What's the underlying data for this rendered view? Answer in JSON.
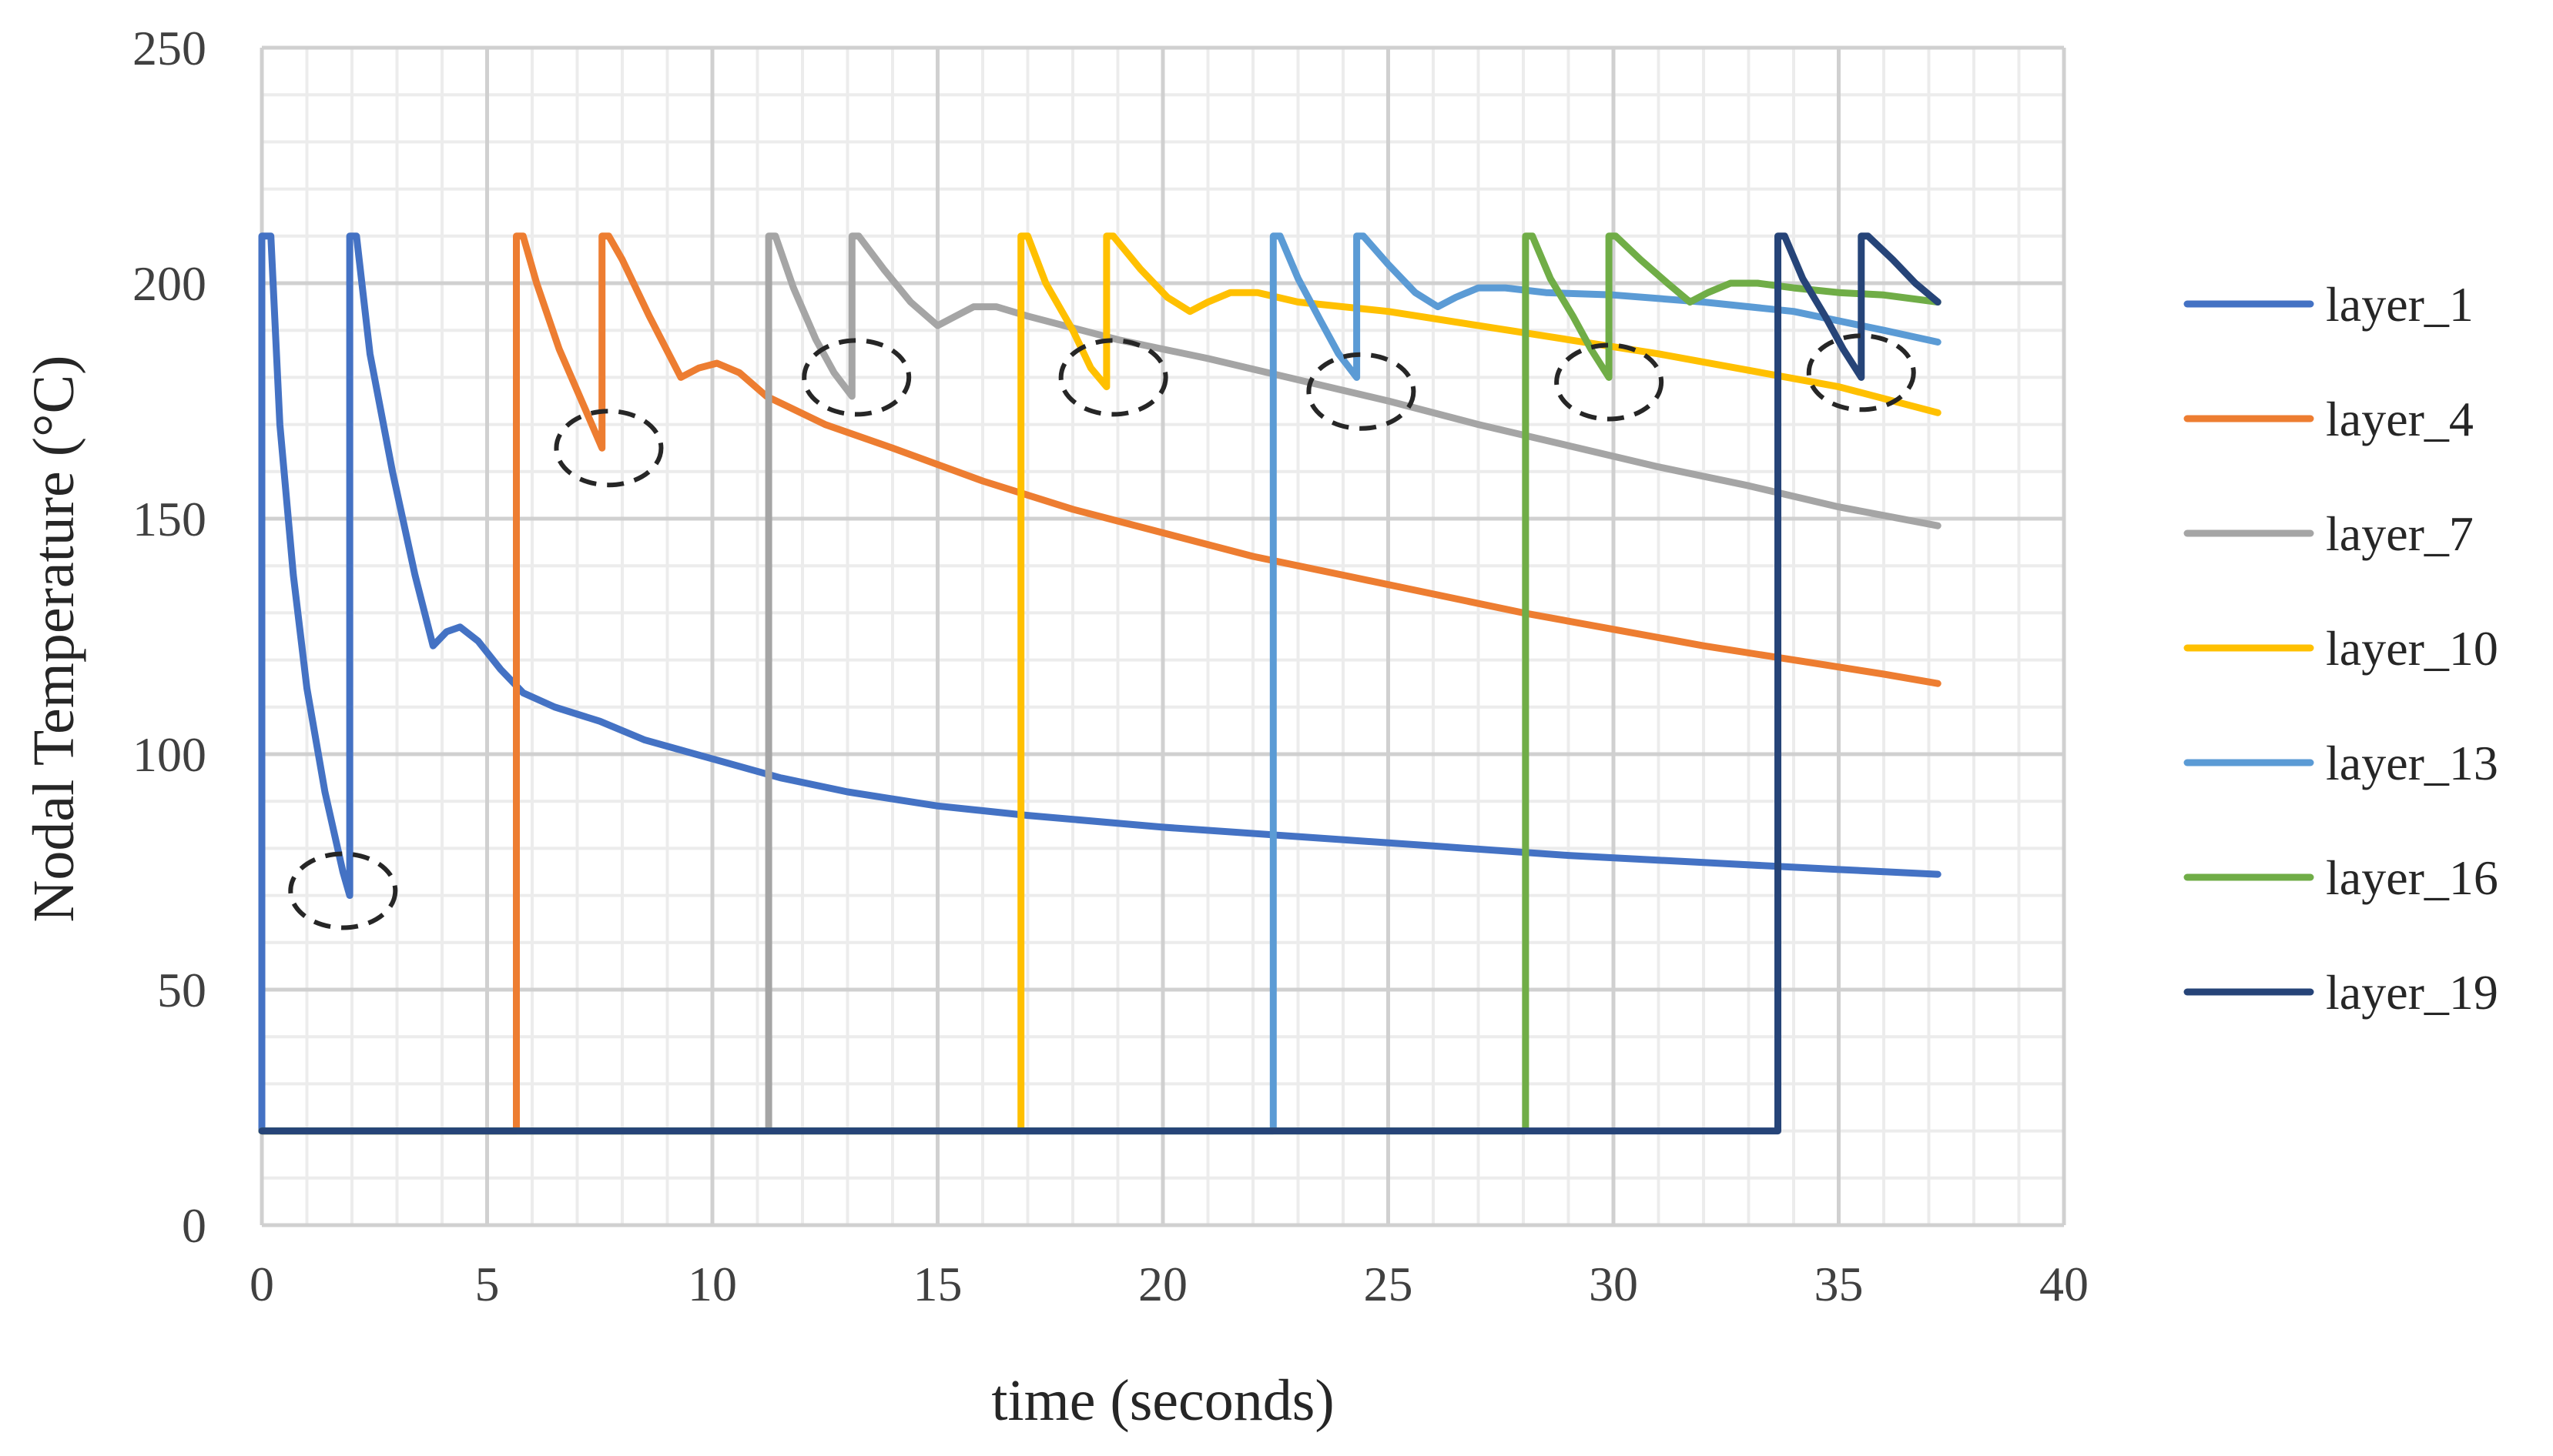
{
  "chart_data": {
    "type": "line",
    "xlabel": "time (seconds)",
    "ylabel": "Nodal Temperature (°C)",
    "xlim": [
      0,
      40
    ],
    "ylim": [
      0,
      250
    ],
    "xticks": [
      0,
      5,
      10,
      15,
      20,
      25,
      30,
      35,
      40
    ],
    "yticks": [
      0,
      50,
      100,
      150,
      200,
      250
    ],
    "x_major_step": 5,
    "x_minor_step": 1,
    "y_major_step": 50,
    "y_minor_step": 10,
    "grid": true,
    "legend_position": "right",
    "series": [
      {
        "name": "layer_1",
        "color": "#4472C4",
        "points": [
          [
            0,
            20
          ],
          [
            0,
            210
          ],
          [
            0.2,
            210
          ],
          [
            0.4,
            170
          ],
          [
            0.7,
            138
          ],
          [
            1.0,
            114
          ],
          [
            1.4,
            92
          ],
          [
            1.8,
            75
          ],
          [
            1.95,
            70
          ],
          [
            1.95,
            210
          ],
          [
            2.1,
            210
          ],
          [
            2.4,
            185
          ],
          [
            2.9,
            160
          ],
          [
            3.4,
            138
          ],
          [
            3.8,
            123
          ],
          [
            4.1,
            126
          ],
          [
            4.4,
            127
          ],
          [
            4.8,
            124
          ],
          [
            5.3,
            118
          ],
          [
            5.8,
            113
          ],
          [
            6.5,
            110
          ],
          [
            7.5,
            107
          ],
          [
            8.5,
            103
          ],
          [
            10,
            99
          ],
          [
            11.5,
            95
          ],
          [
            13,
            92
          ],
          [
            15,
            89
          ],
          [
            17,
            87
          ],
          [
            20,
            84.5
          ],
          [
            23,
            82.5
          ],
          [
            26,
            80.5
          ],
          [
            29,
            78.5
          ],
          [
            32,
            77
          ],
          [
            35,
            75.5
          ],
          [
            37.2,
            74.5
          ]
        ]
      },
      {
        "name": "layer_4",
        "color": "#ED7D31",
        "points": [
          [
            0,
            20
          ],
          [
            5.65,
            20
          ],
          [
            5.65,
            210
          ],
          [
            5.8,
            210
          ],
          [
            6.1,
            200
          ],
          [
            6.6,
            186
          ],
          [
            7.1,
            175
          ],
          [
            7.55,
            165
          ],
          [
            7.55,
            210
          ],
          [
            7.7,
            210
          ],
          [
            8.0,
            205
          ],
          [
            8.6,
            193
          ],
          [
            9.3,
            180
          ],
          [
            9.7,
            182
          ],
          [
            10.1,
            183
          ],
          [
            10.6,
            181
          ],
          [
            11.2,
            176
          ],
          [
            12.5,
            170
          ],
          [
            14,
            165
          ],
          [
            16,
            158
          ],
          [
            18,
            152
          ],
          [
            20,
            147
          ],
          [
            22,
            142
          ],
          [
            24,
            138
          ],
          [
            26,
            134
          ],
          [
            28,
            130
          ],
          [
            30,
            126.5
          ],
          [
            32,
            123
          ],
          [
            34,
            120
          ],
          [
            36,
            117
          ],
          [
            37.2,
            115
          ]
        ]
      },
      {
        "name": "layer_7",
        "color": "#A5A5A5",
        "points": [
          [
            0,
            20
          ],
          [
            11.25,
            20
          ],
          [
            11.25,
            210
          ],
          [
            11.4,
            210
          ],
          [
            11.8,
            199
          ],
          [
            12.3,
            188
          ],
          [
            12.7,
            181
          ],
          [
            13.1,
            176
          ],
          [
            13.1,
            210
          ],
          [
            13.25,
            210
          ],
          [
            13.8,
            203
          ],
          [
            14.4,
            196
          ],
          [
            15.0,
            191
          ],
          [
            15.4,
            193
          ],
          [
            15.8,
            195
          ],
          [
            16.3,
            195
          ],
          [
            17,
            193
          ],
          [
            19,
            188
          ],
          [
            21,
            184
          ],
          [
            23,
            179.5
          ],
          [
            25,
            175
          ],
          [
            27,
            170
          ],
          [
            29,
            165.5
          ],
          [
            31,
            161
          ],
          [
            33,
            157
          ],
          [
            35,
            152.5
          ],
          [
            37.2,
            148.5
          ]
        ]
      },
      {
        "name": "layer_10",
        "color": "#FFC000",
        "points": [
          [
            0,
            20
          ],
          [
            16.85,
            20
          ],
          [
            16.85,
            210
          ],
          [
            17.0,
            210
          ],
          [
            17.4,
            200
          ],
          [
            18.0,
            190
          ],
          [
            18.4,
            182
          ],
          [
            18.75,
            178
          ],
          [
            18.75,
            210
          ],
          [
            18.9,
            210
          ],
          [
            19.5,
            203
          ],
          [
            20.1,
            197
          ],
          [
            20.6,
            194
          ],
          [
            21.0,
            196
          ],
          [
            21.5,
            198
          ],
          [
            22.1,
            198
          ],
          [
            23,
            196
          ],
          [
            25,
            194
          ],
          [
            27,
            191
          ],
          [
            29,
            188
          ],
          [
            31,
            185
          ],
          [
            33,
            181.5
          ],
          [
            35,
            178
          ],
          [
            37.2,
            172.5
          ]
        ]
      },
      {
        "name": "layer_13",
        "color": "#5B9BD5",
        "points": [
          [
            0,
            20
          ],
          [
            22.45,
            20
          ],
          [
            22.45,
            210
          ],
          [
            22.6,
            210
          ],
          [
            23.0,
            201
          ],
          [
            23.5,
            192
          ],
          [
            23.9,
            185
          ],
          [
            24.3,
            180
          ],
          [
            24.3,
            210
          ],
          [
            24.45,
            210
          ],
          [
            25.0,
            204
          ],
          [
            25.6,
            198
          ],
          [
            26.1,
            195
          ],
          [
            26.5,
            197
          ],
          [
            27.0,
            199
          ],
          [
            27.6,
            199
          ],
          [
            28.5,
            198
          ],
          [
            30,
            197.5
          ],
          [
            32,
            196
          ],
          [
            34,
            194
          ],
          [
            36,
            190
          ],
          [
            37.2,
            187.5
          ]
        ]
      },
      {
        "name": "layer_16",
        "color": "#70AD47",
        "points": [
          [
            0,
            20
          ],
          [
            28.05,
            20
          ],
          [
            28.05,
            210
          ],
          [
            28.2,
            210
          ],
          [
            28.6,
            201
          ],
          [
            29.1,
            193
          ],
          [
            29.5,
            186
          ],
          [
            29.9,
            180
          ],
          [
            29.9,
            210
          ],
          [
            30.05,
            210
          ],
          [
            30.6,
            205
          ],
          [
            31.2,
            200
          ],
          [
            31.7,
            196
          ],
          [
            32.1,
            198
          ],
          [
            32.6,
            200
          ],
          [
            33.2,
            200
          ],
          [
            34,
            199
          ],
          [
            35,
            198
          ],
          [
            36,
            197.5
          ],
          [
            37.2,
            196
          ]
        ]
      },
      {
        "name": "layer_19",
        "color": "#264478",
        "points": [
          [
            0,
            20
          ],
          [
            33.65,
            20
          ],
          [
            33.65,
            210
          ],
          [
            33.8,
            210
          ],
          [
            34.2,
            201
          ],
          [
            34.7,
            193
          ],
          [
            35.1,
            186
          ],
          [
            35.5,
            180
          ],
          [
            35.5,
            210
          ],
          [
            35.65,
            210
          ],
          [
            36.2,
            205
          ],
          [
            36.7,
            200
          ],
          [
            37.2,
            196
          ]
        ]
      }
    ],
    "annotations": [
      {
        "type": "dashed-ellipse",
        "x": 1.8,
        "y": 71
      },
      {
        "type": "dashed-ellipse",
        "x": 7.7,
        "y": 165
      },
      {
        "type": "dashed-ellipse",
        "x": 13.2,
        "y": 180
      },
      {
        "type": "dashed-ellipse",
        "x": 18.9,
        "y": 180
      },
      {
        "type": "dashed-ellipse",
        "x": 24.4,
        "y": 177
      },
      {
        "type": "dashed-ellipse",
        "x": 29.9,
        "y": 179
      },
      {
        "type": "dashed-ellipse",
        "x": 35.5,
        "y": 181
      }
    ]
  }
}
